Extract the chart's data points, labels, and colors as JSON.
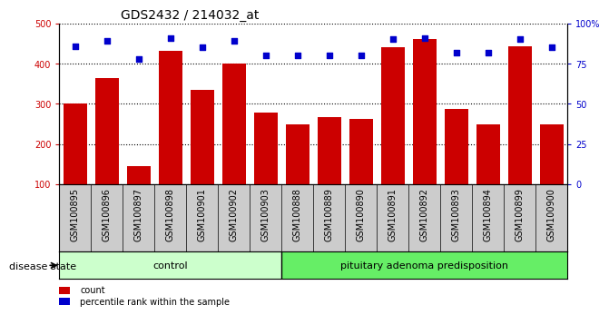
{
  "title": "GDS2432 / 214032_at",
  "samples": [
    "GSM100895",
    "GSM100896",
    "GSM100897",
    "GSM100898",
    "GSM100901",
    "GSM100902",
    "GSM100903",
    "GSM100888",
    "GSM100889",
    "GSM100890",
    "GSM100891",
    "GSM100892",
    "GSM100893",
    "GSM100894",
    "GSM100899",
    "GSM100900"
  ],
  "counts": [
    300,
    363,
    145,
    432,
    335,
    400,
    277,
    248,
    267,
    263,
    440,
    460,
    288,
    248,
    443,
    248
  ],
  "percentiles": [
    86,
    89,
    78,
    91,
    85,
    89,
    80,
    80,
    80,
    80,
    90,
    91,
    82,
    82,
    90,
    85
  ],
  "control_count": 7,
  "group_labels": [
    "control",
    "pituitary adenoma predisposition"
  ],
  "ctrl_color": "#ccffcc",
  "adeno_color": "#66ee66",
  "ylim_left": [
    100,
    500
  ],
  "ylim_right": [
    0,
    100
  ],
  "yticks_left": [
    100,
    200,
    300,
    400,
    500
  ],
  "yticks_right": [
    0,
    25,
    50,
    75,
    100
  ],
  "ytick_labels_right": [
    "0",
    "25",
    "50",
    "75",
    "100%"
  ],
  "bar_color": "#cc0000",
  "dot_color": "#0000cc",
  "bg_color": "#ffffff",
  "xtick_bg_color": "#cccccc",
  "grid_color": "#000000",
  "legend_label_red": "count",
  "legend_label_blue": "percentile rank within the sample",
  "title_fontsize": 10,
  "tick_fontsize": 7,
  "label_fontsize": 8,
  "perc_scale_factor": 4.0
}
